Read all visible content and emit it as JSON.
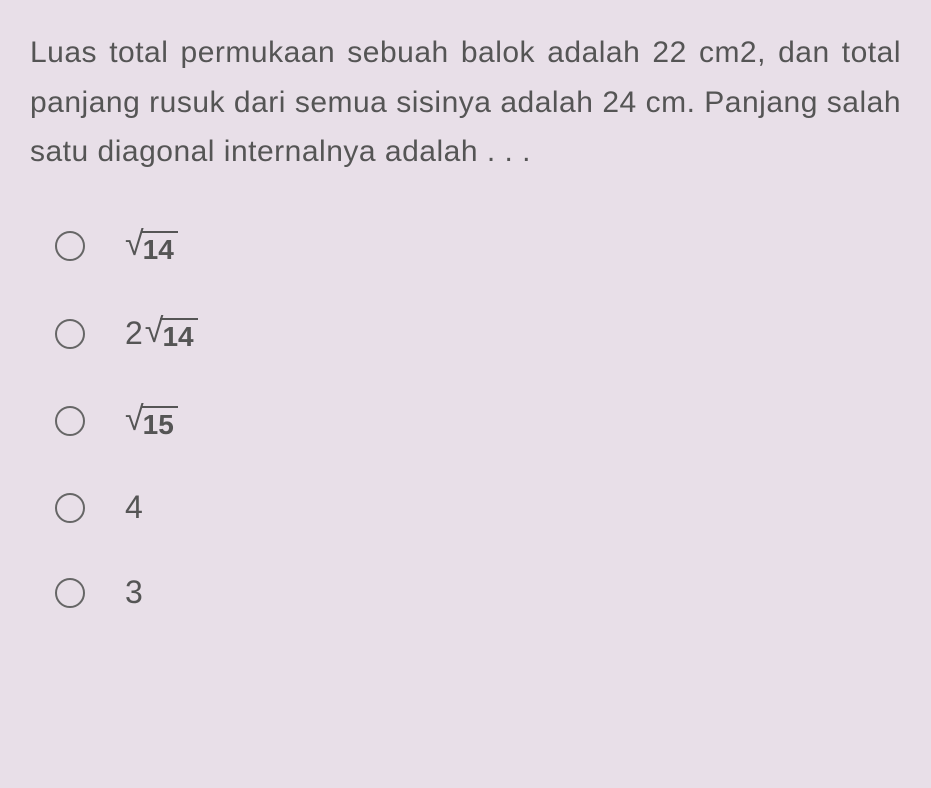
{
  "question": {
    "text": "Luas total permukaan sebuah balok adalah 22 cm2, dan total panjang rusuk dari semua sisinya adalah 24 cm. Panjang salah satu diagonal internalnya adalah . . ."
  },
  "options": [
    {
      "type": "sqrt",
      "coef": "",
      "radicand": "14"
    },
    {
      "type": "sqrt",
      "coef": "2",
      "radicand": "14"
    },
    {
      "type": "sqrt",
      "coef": "",
      "radicand": "15"
    },
    {
      "type": "plain",
      "value": "4"
    },
    {
      "type": "plain",
      "value": "3"
    }
  ],
  "styling": {
    "background_color": "#e8dfe8",
    "text_color": "#555555",
    "radio_border_color": "#666666",
    "question_fontsize": 30,
    "option_fontsize": 32
  }
}
